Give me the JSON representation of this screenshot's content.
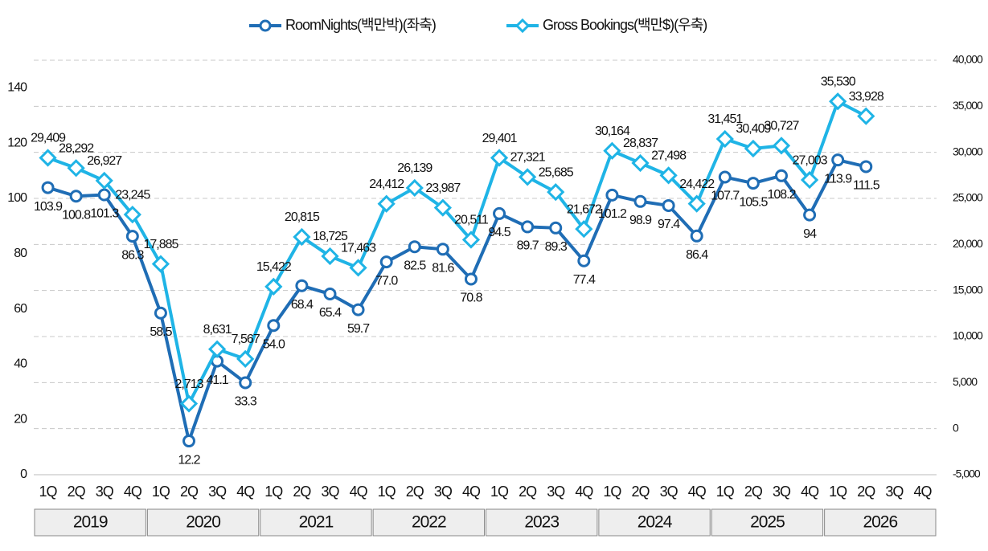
{
  "chart_data": {
    "type": "line",
    "categories": [
      "1Q",
      "2Q",
      "3Q",
      "4Q",
      "1Q",
      "2Q",
      "3Q",
      "4Q",
      "1Q",
      "2Q",
      "3Q",
      "4Q",
      "1Q",
      "2Q",
      "3Q",
      "4Q",
      "1Q",
      "2Q",
      "3Q",
      "4Q",
      "1Q",
      "2Q",
      "3Q",
      "4Q",
      "1Q",
      "2Q",
      "3Q",
      "4Q",
      "1Q",
      "2Q",
      "3Q",
      "4Q"
    ],
    "groups": [
      "2019",
      "2020",
      "2021",
      "2022",
      "2023",
      "2024",
      "2025",
      "2026"
    ],
    "series": [
      {
        "name": "RoomNights(백만박)(좌축)",
        "color": "#1f6db5",
        "axis": "y",
        "values": [
          103.9,
          100.8,
          101.3,
          86.3,
          58.5,
          12.2,
          41.1,
          33.3,
          54.0,
          68.4,
          65.4,
          59.7,
          77.0,
          82.5,
          81.6,
          70.8,
          94.5,
          89.7,
          89.3,
          77.4,
          101.2,
          98.9,
          97.4,
          86.4,
          107.7,
          105.5,
          108.2,
          94,
          113.9,
          111.5,
          null,
          null
        ],
        "value_labels": [
          "103.9",
          "100.8",
          "101.3",
          "86.3",
          "58.5",
          "12.2",
          "41.1",
          "33.3",
          "54.0",
          "68.4",
          "65.4",
          "59.7",
          "77.0",
          "82.5",
          "81.6",
          "70.8",
          "94.5",
          "89.7",
          "89.3",
          "77.4",
          "101.2",
          "98.9",
          "97.4",
          "86.4",
          "107.7",
          "105.5",
          "108.2",
          "94",
          "113.9",
          "111.5",
          null,
          null
        ]
      },
      {
        "name": "Gross Bookings(백만$)(우축)",
        "color": "#1fb4e6",
        "axis": "y2",
        "values": [
          29409,
          28292,
          26927,
          23245,
          17885,
          2713,
          8631,
          7567,
          15422,
          20815,
          18725,
          17463,
          24412,
          26139,
          23987,
          20511,
          29401,
          27321,
          25685,
          21672,
          30164,
          28837,
          27498,
          24422,
          31451,
          30409,
          30727,
          27003,
          35530,
          33928,
          null,
          null
        ],
        "value_labels": [
          "29,409",
          "28,292",
          "26,927",
          "23,245",
          "17,885",
          "2,713",
          "8,631",
          "7,567",
          "15,422",
          "20,815",
          "18,725",
          "17,463",
          "24,412",
          "26,139",
          "23,987",
          "20,511",
          "29,401",
          "27,321",
          "25,685",
          "21,672",
          "30,164",
          "28,837",
          "27,498",
          "24,422",
          "31,451",
          "30,409",
          "30,727",
          "27,003",
          "35,530",
          "33,928",
          null,
          null
        ]
      }
    ],
    "ylim": [
      0,
      150
    ],
    "yticks": [
      0,
      20,
      40,
      60,
      80,
      100,
      120,
      140
    ],
    "y2lim": [
      -5000,
      40000
    ],
    "y2ticks": [
      {
        "value": -5000,
        "label": "-5,000"
      },
      0,
      {
        "value": 5000,
        "label": "5,000"
      },
      {
        "value": 10000,
        "label": "10,000"
      },
      {
        "value": 15000,
        "label": "15,000"
      },
      {
        "value": 20000,
        "label": "20,000"
      },
      {
        "value": 25000,
        "label": "25,000"
      },
      {
        "value": 30000,
        "label": "30,000"
      },
      {
        "value": 35000,
        "label": "35,000"
      },
      {
        "value": 40000,
        "label": "40,000"
      }
    ],
    "grid": true,
    "legend": "top"
  }
}
